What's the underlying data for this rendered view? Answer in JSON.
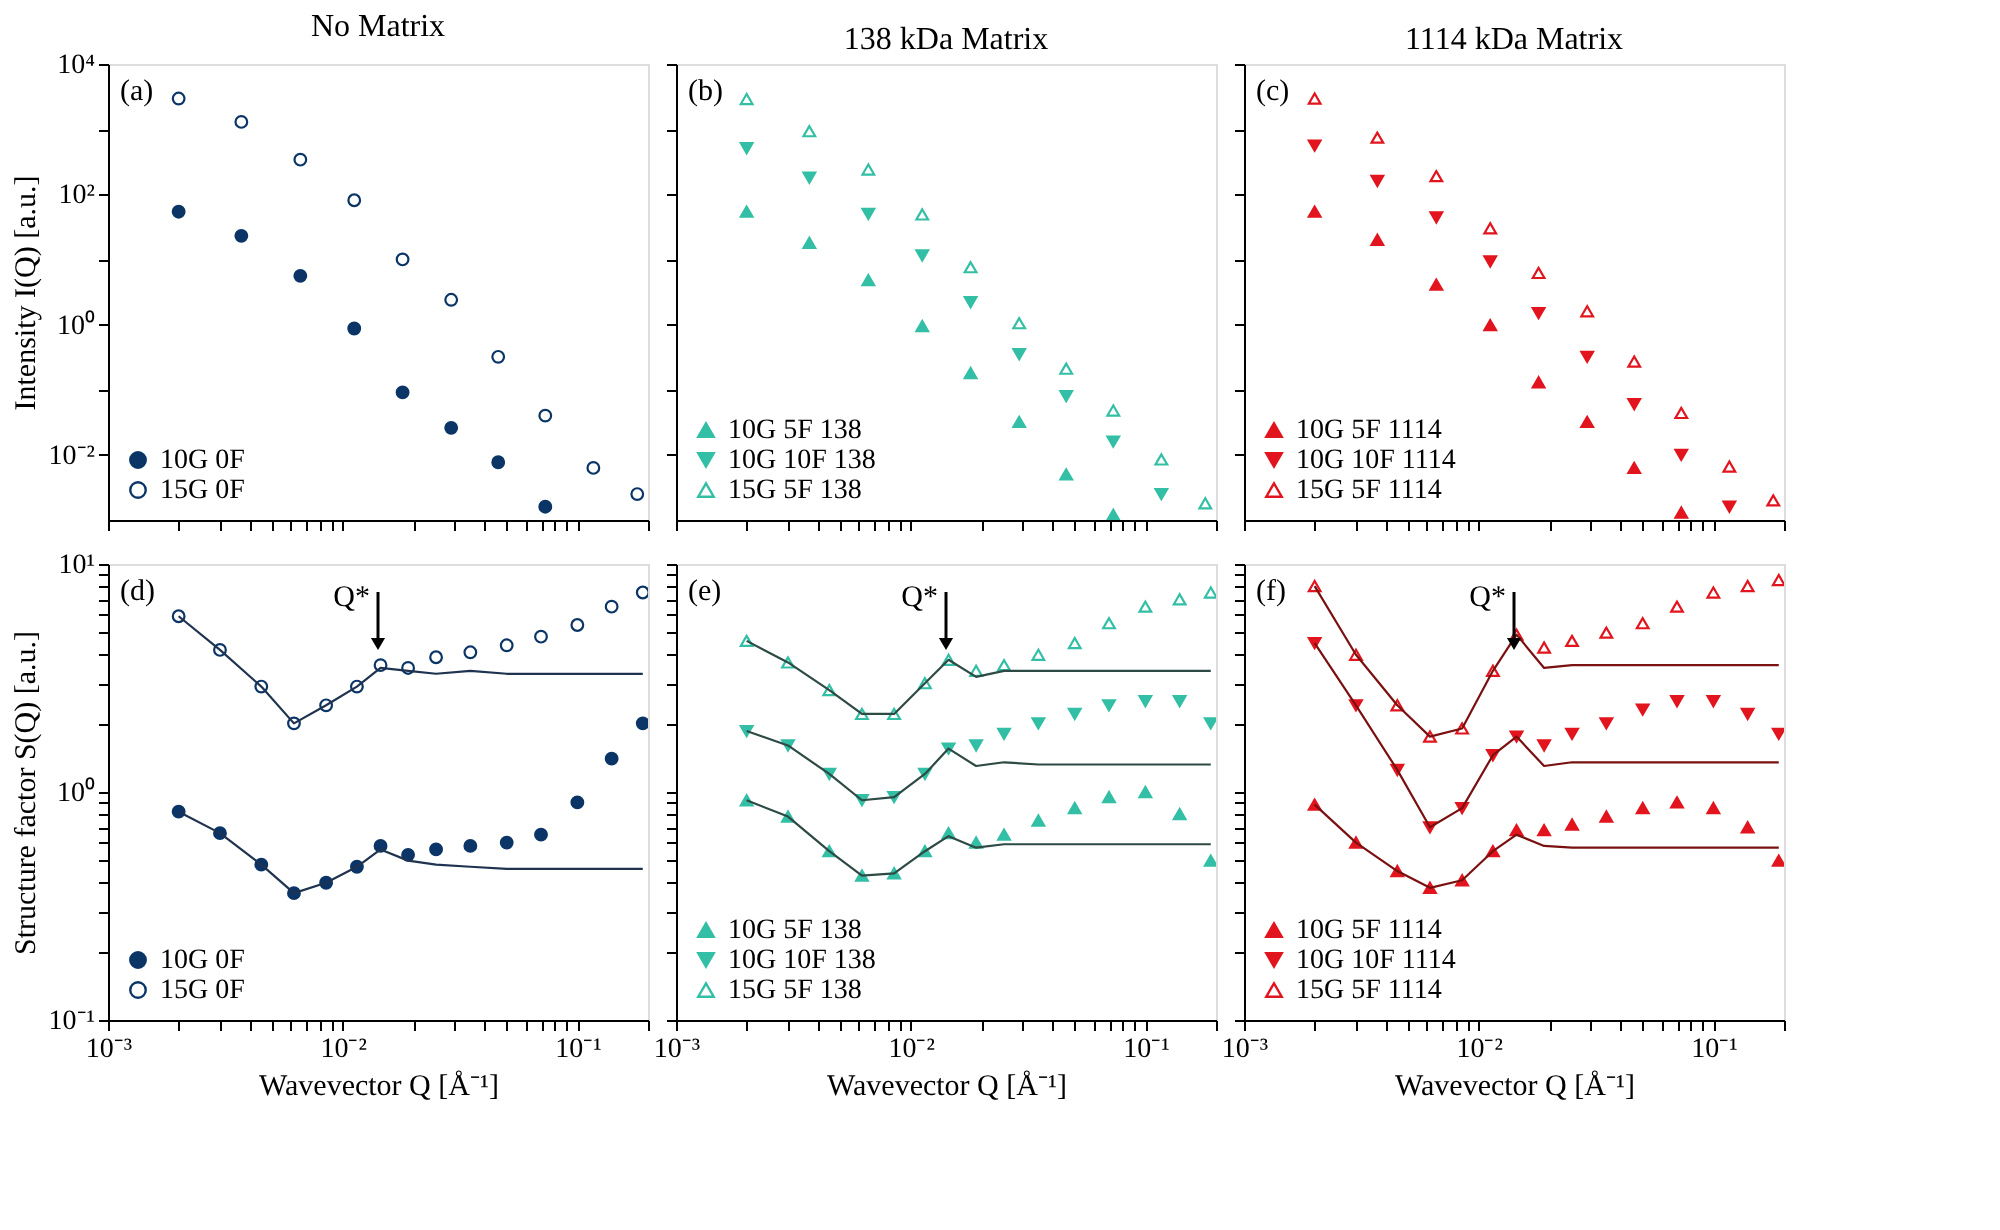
{
  "chart_data": [
    {
      "type": "scatter",
      "title": "No Matrix",
      "ylabel": "Intensity I(Q) [a.u.]",
      "log": "xy",
      "legend": "bottom left",
      "tick_labels": "y",
      "annotations": [
        "(a)"
      ],
      "x": [
        0.002,
        0.0037,
        0.0066,
        0.0112,
        0.018,
        0.029,
        0.046,
        0.073,
        0.117,
        0.18
      ],
      "xlim": [
        0.001,
        0.2
      ],
      "ylim": [
        0.001,
        10000
      ],
      "xticks": [
        {
          "value": 0.001,
          "label": null
        },
        {
          "value": 0.002,
          "label": null
        },
        {
          "value": 0.003,
          "label": null
        },
        {
          "value": 0.004,
          "label": null
        },
        {
          "value": 0.005,
          "label": null
        },
        {
          "value": 0.006,
          "label": null
        },
        {
          "value": 0.007,
          "label": null
        },
        {
          "value": 0.008,
          "label": null
        },
        {
          "value": 0.009,
          "label": null
        },
        {
          "value": 0.01,
          "label": null
        },
        {
          "value": 0.02,
          "label": null
        },
        {
          "value": 0.03,
          "label": null
        },
        {
          "value": 0.04,
          "label": null
        },
        {
          "value": 0.05,
          "label": null
        },
        {
          "value": 0.06,
          "label": null
        },
        {
          "value": 0.07,
          "label": null
        },
        {
          "value": 0.08,
          "label": null
        },
        {
          "value": 0.09,
          "label": null
        },
        {
          "value": 0.1,
          "label": null
        },
        {
          "value": 0.2,
          "label": null
        }
      ],
      "yticks": [
        {
          "value": 10000,
          "label": "10⁴"
        },
        {
          "value": 1000,
          "label": null
        },
        {
          "value": 100,
          "label": "10²"
        },
        {
          "value": 10,
          "label": null
        },
        {
          "value": 1,
          "label": "10⁰"
        },
        {
          "value": 0.1,
          "label": null
        },
        {
          "value": 0.01,
          "label": "10⁻²"
        }
      ],
      "series": [
        {
          "name": "10G 0F",
          "color": "#0b3566",
          "marker": "circle",
          "values": [
            54,
            23,
            5.6,
            0.87,
            0.091,
            0.026,
            0.0077,
            0.0016,
            null,
            null
          ]
        },
        {
          "name": "15G 0F",
          "color": "#0b3566",
          "marker": "circle-open",
          "values": [
            2950,
            1290,
            340,
            81,
            10,
            2.4,
            0.32,
            0.04,
            0.0063,
            0.0025
          ]
        }
      ]
    },
    {
      "type": "scatter",
      "title": "138 kDa Matrix",
      "log": "xy",
      "legend": "bottom left",
      "tick_labels": false,
      "annotations": [
        "(b)"
      ],
      "x": [
        0.002,
        0.0037,
        0.0066,
        0.0112,
        0.018,
        0.029,
        0.046,
        0.073,
        0.117,
        0.18
      ],
      "xlim": [
        0.001,
        0.2
      ],
      "ylim": [
        0.001,
        10000
      ],
      "xticks": [
        {
          "value": 0.001,
          "label": null
        },
        {
          "value": 0.002,
          "label": null
        },
        {
          "value": 0.003,
          "label": null
        },
        {
          "value": 0.004,
          "label": null
        },
        {
          "value": 0.005,
          "label": null
        },
        {
          "value": 0.006,
          "label": null
        },
        {
          "value": 0.007,
          "label": null
        },
        {
          "value": 0.008,
          "label": null
        },
        {
          "value": 0.009,
          "label": null
        },
        {
          "value": 0.01,
          "label": null
        },
        {
          "value": 0.02,
          "label": null
        },
        {
          "value": 0.03,
          "label": null
        },
        {
          "value": 0.04,
          "label": null
        },
        {
          "value": 0.05,
          "label": null
        },
        {
          "value": 0.06,
          "label": null
        },
        {
          "value": 0.07,
          "label": null
        },
        {
          "value": 0.08,
          "label": null
        },
        {
          "value": 0.09,
          "label": null
        },
        {
          "value": 0.1,
          "label": null
        },
        {
          "value": 0.2,
          "label": null
        }
      ],
      "yticks": [
        {
          "value": 10000,
          "label": null
        },
        {
          "value": 1000,
          "label": null
        },
        {
          "value": 100,
          "label": null
        },
        {
          "value": 10,
          "label": null
        },
        {
          "value": 1,
          "label": null
        },
        {
          "value": 0.1,
          "label": null
        },
        {
          "value": 0.01,
          "label": null
        }
      ],
      "series": [
        {
          "name": "10G 5F 138",
          "color": "#33bfa5",
          "marker": "triangle",
          "values": [
            54,
            18,
            4.8,
            0.95,
            0.18,
            0.032,
            0.005,
            0.0012,
            null,
            null
          ]
        },
        {
          "name": "10G 10F 138",
          "color": "#33bfa5",
          "marker": "triangle-down",
          "values": [
            510,
            180,
            50,
            11.5,
            2.2,
            0.35,
            0.08,
            0.016,
            0.0025,
            null
          ]
        },
        {
          "name": "15G 5F 138",
          "color": "#33bfa5",
          "marker": "triangle-open",
          "values": [
            2900,
            930,
            240,
            49,
            7.6,
            1.05,
            0.21,
            0.048,
            0.0085,
            0.0018
          ]
        }
      ]
    },
    {
      "type": "scatter",
      "title": "1114 kDa Matrix",
      "log": "xy",
      "legend": "bottom left",
      "tick_labels": false,
      "annotations": [
        "(c)"
      ],
      "x": [
        0.002,
        0.0037,
        0.0066,
        0.0112,
        0.018,
        0.029,
        0.046,
        0.073,
        0.117,
        0.18
      ],
      "xlim": [
        0.001,
        0.2
      ],
      "ylim": [
        0.001,
        10000
      ],
      "xticks": [
        {
          "value": 0.001,
          "label": null
        },
        {
          "value": 0.002,
          "label": null
        },
        {
          "value": 0.003,
          "label": null
        },
        {
          "value": 0.004,
          "label": null
        },
        {
          "value": 0.005,
          "label": null
        },
        {
          "value": 0.006,
          "label": null
        },
        {
          "value": 0.007,
          "label": null
        },
        {
          "value": 0.008,
          "label": null
        },
        {
          "value": 0.009,
          "label": null
        },
        {
          "value": 0.01,
          "label": null
        },
        {
          "value": 0.02,
          "label": null
        },
        {
          "value": 0.03,
          "label": null
        },
        {
          "value": 0.04,
          "label": null
        },
        {
          "value": 0.05,
          "label": null
        },
        {
          "value": 0.06,
          "label": null
        },
        {
          "value": 0.07,
          "label": null
        },
        {
          "value": 0.08,
          "label": null
        },
        {
          "value": 0.09,
          "label": null
        },
        {
          "value": 0.1,
          "label": null
        },
        {
          "value": 0.2,
          "label": null
        }
      ],
      "yticks": [
        {
          "value": 10000,
          "label": null
        },
        {
          "value": 1000,
          "label": null
        },
        {
          "value": 100,
          "label": null
        },
        {
          "value": 10,
          "label": null
        },
        {
          "value": 1,
          "label": null
        },
        {
          "value": 0.1,
          "label": null
        },
        {
          "value": 0.01,
          "label": null
        }
      ],
      "series": [
        {
          "name": "10G 5F 1114",
          "color": "#e2141e",
          "marker": "triangle",
          "values": [
            54,
            20,
            4.1,
            0.98,
            0.13,
            0.032,
            0.0063,
            0.0013,
            null,
            null
          ]
        },
        {
          "name": "10G 10F 1114",
          "color": "#e2141e",
          "marker": "triangle-down",
          "values": [
            560,
            160,
            44,
            9.3,
            1.5,
            0.32,
            0.06,
            0.01,
            0.0016,
            null
          ]
        },
        {
          "name": "15G 5F 1114",
          "color": "#e2141e",
          "marker": "triangle-open",
          "values": [
            2950,
            740,
            190,
            30,
            6.2,
            1.6,
            0.27,
            0.044,
            0.0066,
            0.002
          ]
        }
      ]
    },
    {
      "type": "scatter",
      "xlabel": "Wavevector Q [Å⁻¹]",
      "ylabel": "Structure factor S(Q) [a.u.]",
      "log": "xy",
      "legend": "bottom left",
      "annotations": [
        "(d)",
        "Q*"
      ],
      "x": [
        0.002,
        0.003,
        0.0045,
        0.0062,
        0.0085,
        0.0115,
        0.0145,
        0.019,
        0.025,
        0.035,
        0.05,
        0.07,
        0.1,
        0.14,
        0.19
      ],
      "xlim": [
        0.001,
        0.2
      ],
      "ylim": [
        0.1,
        10
      ],
      "xticks": [
        {
          "value": 0.001,
          "label": "10⁻³"
        },
        {
          "value": 0.002,
          "label": null
        },
        {
          "value": 0.003,
          "label": null
        },
        {
          "value": 0.004,
          "label": null
        },
        {
          "value": 0.005,
          "label": null
        },
        {
          "value": 0.006,
          "label": null
        },
        {
          "value": 0.007,
          "label": null
        },
        {
          "value": 0.008,
          "label": null
        },
        {
          "value": 0.009,
          "label": null
        },
        {
          "value": 0.01,
          "label": "10⁻²"
        },
        {
          "value": 0.02,
          "label": null
        },
        {
          "value": 0.03,
          "label": null
        },
        {
          "value": 0.04,
          "label": null
        },
        {
          "value": 0.05,
          "label": null
        },
        {
          "value": 0.06,
          "label": null
        },
        {
          "value": 0.07,
          "label": null
        },
        {
          "value": 0.08,
          "label": null
        },
        {
          "value": 0.09,
          "label": null
        },
        {
          "value": 0.1,
          "label": "10⁻¹"
        },
        {
          "value": 0.2,
          "label": null
        }
      ],
      "yticks": [
        {
          "value": 0.1,
          "label": "10⁻¹"
        },
        {
          "value": 0.2,
          "label": null
        },
        {
          "value": 0.3,
          "label": null
        },
        {
          "value": 0.4,
          "label": null
        },
        {
          "value": 0.5,
          "label": null
        },
        {
          "value": 0.6,
          "label": null
        },
        {
          "value": 0.7,
          "label": null
        },
        {
          "value": 0.8,
          "label": null
        },
        {
          "value": 0.9,
          "label": null
        },
        {
          "value": 1,
          "label": "10⁰"
        },
        {
          "value": 2,
          "label": null
        },
        {
          "value": 3,
          "label": null
        },
        {
          "value": 4,
          "label": null
        },
        {
          "value": 5,
          "label": null
        },
        {
          "value": 6,
          "label": null
        },
        {
          "value": 7,
          "label": null
        },
        {
          "value": 8,
          "label": null
        },
        {
          "value": 9,
          "label": null
        },
        {
          "value": 10,
          "label": "10¹"
        }
      ],
      "series": [
        {
          "name": "10G 0F",
          "color": "#0b3566",
          "marker": "circle",
          "values": [
            0.82,
            0.66,
            0.48,
            0.36,
            0.4,
            0.47,
            0.58,
            0.53,
            0.56,
            0.58,
            0.6,
            0.65,
            0.9,
            1.4,
            2.0
          ]
        },
        {
          "name": "15G 0F",
          "color": "#0b3566",
          "marker": "circle-open",
          "values": [
            5.9,
            4.2,
            2.9,
            2.0,
            2.4,
            2.9,
            3.6,
            3.5,
            3.9,
            4.1,
            4.4,
            4.8,
            5.4,
            6.5,
            7.5
          ]
        },
        {
          "type": "line",
          "color": "#1f3350",
          "values": [
            0.82,
            0.66,
            0.48,
            0.36,
            0.4,
            0.47,
            0.56,
            0.5,
            0.48,
            0.47,
            0.46,
            0.46,
            0.46,
            0.46,
            0.46
          ]
        },
        {
          "type": "line",
          "color": "#1f3350",
          "values": [
            5.9,
            4.2,
            2.9,
            2.0,
            2.4,
            2.9,
            3.5,
            3.4,
            3.3,
            3.4,
            3.3,
            3.3,
            3.3,
            3.3,
            3.3
          ]
        }
      ]
    },
    {
      "type": "scatter",
      "xlabel": "Wavevector Q [Å⁻¹]",
      "log": "xy",
      "legend": "bottom left",
      "tick_labels": "x",
      "annotations": [
        "(e)",
        "Q*"
      ],
      "x": [
        0.002,
        0.003,
        0.0045,
        0.0062,
        0.0085,
        0.0115,
        0.0145,
        0.019,
        0.025,
        0.035,
        0.05,
        0.07,
        0.1,
        0.14,
        0.19
      ],
      "xlim": [
        0.001,
        0.2
      ],
      "ylim": [
        0.1,
        10
      ],
      "xticks": [
        {
          "value": 0.001,
          "label": "10⁻³"
        },
        {
          "value": 0.002,
          "label": null
        },
        {
          "value": 0.003,
          "label": null
        },
        {
          "value": 0.004,
          "label": null
        },
        {
          "value": 0.005,
          "label": null
        },
        {
          "value": 0.006,
          "label": null
        },
        {
          "value": 0.007,
          "label": null
        },
        {
          "value": 0.008,
          "label": null
        },
        {
          "value": 0.009,
          "label": null
        },
        {
          "value": 0.01,
          "label": "10⁻²"
        },
        {
          "value": 0.02,
          "label": null
        },
        {
          "value": 0.03,
          "label": null
        },
        {
          "value": 0.04,
          "label": null
        },
        {
          "value": 0.05,
          "label": null
        },
        {
          "value": 0.06,
          "label": null
        },
        {
          "value": 0.07,
          "label": null
        },
        {
          "value": 0.08,
          "label": null
        },
        {
          "value": 0.09,
          "label": null
        },
        {
          "value": 0.1,
          "label": "10⁻¹"
        },
        {
          "value": 0.2,
          "label": null
        }
      ],
      "yticks": [
        {
          "value": 0.1,
          "label": null
        },
        {
          "value": 0.2,
          "label": null
        },
        {
          "value": 0.3,
          "label": null
        },
        {
          "value": 0.4,
          "label": null
        },
        {
          "value": 0.5,
          "label": null
        },
        {
          "value": 0.6,
          "label": null
        },
        {
          "value": 0.7,
          "label": null
        },
        {
          "value": 0.8,
          "label": null
        },
        {
          "value": 0.9,
          "label": null
        },
        {
          "value": 1,
          "label": null
        },
        {
          "value": 2,
          "label": null
        },
        {
          "value": 3,
          "label": null
        },
        {
          "value": 4,
          "label": null
        },
        {
          "value": 5,
          "label": null
        },
        {
          "value": 6,
          "label": null
        },
        {
          "value": 7,
          "label": null
        },
        {
          "value": 8,
          "label": null
        },
        {
          "value": 9,
          "label": null
        },
        {
          "value": 10,
          "label": null
        }
      ],
      "series": [
        {
          "name": "10G 5F 138",
          "color": "#33bfa5",
          "marker": "triangle",
          "values": [
            0.92,
            0.78,
            0.55,
            0.43,
            0.44,
            0.55,
            0.66,
            0.6,
            0.65,
            0.75,
            0.85,
            0.95,
            1.0,
            0.8,
            0.5
          ]
        },
        {
          "name": "10G 10F 138",
          "color": "#33bfa5",
          "marker": "triangle-down",
          "values": [
            1.85,
            1.6,
            1.2,
            0.92,
            0.95,
            1.2,
            1.55,
            1.6,
            1.8,
            2.0,
            2.2,
            2.4,
            2.5,
            2.5,
            2.0
          ]
        },
        {
          "name": "15G 5F 138",
          "color": "#33bfa5",
          "marker": "triangle-open",
          "values": [
            4.6,
            3.7,
            2.8,
            2.2,
            2.2,
            3.0,
            3.8,
            3.4,
            3.6,
            4.0,
            4.5,
            5.5,
            6.5,
            7.0,
            7.5
          ]
        },
        {
          "type": "line",
          "color": "#2d4a44",
          "values": [
            0.92,
            0.78,
            0.55,
            0.43,
            0.44,
            0.55,
            0.64,
            0.57,
            0.59,
            0.59,
            0.59,
            0.59,
            0.59,
            0.59,
            0.59
          ]
        },
        {
          "type": "line",
          "color": "#2d4a44",
          "values": [
            1.85,
            1.6,
            1.2,
            0.92,
            0.95,
            1.2,
            1.55,
            1.3,
            1.35,
            1.32,
            1.32,
            1.32,
            1.32,
            1.32,
            1.32
          ]
        },
        {
          "type": "line",
          "color": "#2d4a44",
          "values": [
            4.6,
            3.7,
            2.8,
            2.2,
            2.2,
            3.0,
            3.8,
            3.2,
            3.4,
            3.4,
            3.4,
            3.4,
            3.4,
            3.4,
            3.4
          ]
        }
      ]
    },
    {
      "type": "scatter",
      "xlabel": "Wavevector Q [Å⁻¹]",
      "log": "xy",
      "legend": "bottom left",
      "tick_labels": "x",
      "annotations": [
        "(f)",
        "Q*"
      ],
      "x": [
        0.002,
        0.003,
        0.0045,
        0.0062,
        0.0085,
        0.0115,
        0.0145,
        0.019,
        0.025,
        0.035,
        0.05,
        0.07,
        0.1,
        0.14,
        0.19
      ],
      "xlim": [
        0.001,
        0.2
      ],
      "ylim": [
        0.1,
        10
      ],
      "xticks": [
        {
          "value": 0.001,
          "label": "10⁻³"
        },
        {
          "value": 0.002,
          "label": null
        },
        {
          "value": 0.003,
          "label": null
        },
        {
          "value": 0.004,
          "label": null
        },
        {
          "value": 0.005,
          "label": null
        },
        {
          "value": 0.006,
          "label": null
        },
        {
          "value": 0.007,
          "label": null
        },
        {
          "value": 0.008,
          "label": null
        },
        {
          "value": 0.009,
          "label": null
        },
        {
          "value": 0.01,
          "label": "10⁻²"
        },
        {
          "value": 0.02,
          "label": null
        },
        {
          "value": 0.03,
          "label": null
        },
        {
          "value": 0.04,
          "label": null
        },
        {
          "value": 0.05,
          "label": null
        },
        {
          "value": 0.06,
          "label": null
        },
        {
          "value": 0.07,
          "label": null
        },
        {
          "value": 0.08,
          "label": null
        },
        {
          "value": 0.09,
          "label": null
        },
        {
          "value": 0.1,
          "label": "10⁻¹"
        },
        {
          "value": 0.2,
          "label": null
        }
      ],
      "yticks": [
        {
          "value": 0.1,
          "label": null
        },
        {
          "value": 0.2,
          "label": null
        },
        {
          "value": 0.3,
          "label": null
        },
        {
          "value": 0.4,
          "label": null
        },
        {
          "value": 0.5,
          "label": null
        },
        {
          "value": 0.6,
          "label": null
        },
        {
          "value": 0.7,
          "label": null
        },
        {
          "value": 0.8,
          "label": null
        },
        {
          "value": 0.9,
          "label": null
        },
        {
          "value": 1,
          "label": null
        },
        {
          "value": 2,
          "label": null
        },
        {
          "value": 3,
          "label": null
        },
        {
          "value": 4,
          "label": null
        },
        {
          "value": 5,
          "label": null
        },
        {
          "value": 6,
          "label": null
        },
        {
          "value": 7,
          "label": null
        },
        {
          "value": 8,
          "label": null
        },
        {
          "value": 9,
          "label": null
        },
        {
          "value": 10,
          "label": null
        }
      ],
      "series": [
        {
          "name": "10G 5F 1114",
          "color": "#e2141e",
          "marker": "triangle",
          "values": [
            0.88,
            0.6,
            0.45,
            0.38,
            0.41,
            0.55,
            0.68,
            0.68,
            0.72,
            0.78,
            0.85,
            0.9,
            0.85,
            0.7,
            0.5
          ]
        },
        {
          "name": "10G 10F 1114",
          "color": "#e2141e",
          "marker": "triangle-down",
          "values": [
            4.5,
            2.4,
            1.25,
            0.7,
            0.85,
            1.45,
            1.75,
            1.6,
            1.8,
            2.0,
            2.3,
            2.5,
            2.5,
            2.2,
            1.8
          ]
        },
        {
          "name": "15G 5F 1114",
          "color": "#e2141e",
          "marker": "triangle-open",
          "values": [
            8.0,
            4.0,
            2.4,
            1.75,
            1.9,
            3.4,
            4.9,
            4.3,
            4.6,
            5.0,
            5.5,
            6.5,
            7.5,
            8.0,
            8.5
          ]
        },
        {
          "type": "line",
          "color": "#7a1010",
          "values": [
            0.88,
            0.6,
            0.45,
            0.38,
            0.41,
            0.55,
            0.65,
            0.58,
            0.57,
            0.57,
            0.57,
            0.57,
            0.57,
            0.57,
            0.57
          ]
        },
        {
          "type": "line",
          "color": "#7a1010",
          "values": [
            4.5,
            2.4,
            1.25,
            0.7,
            0.85,
            1.45,
            1.75,
            1.3,
            1.35,
            1.35,
            1.35,
            1.35,
            1.35,
            1.35,
            1.35
          ]
        },
        {
          "type": "line",
          "color": "#7a1010",
          "values": [
            8.0,
            4.0,
            2.4,
            1.75,
            1.9,
            3.4,
            4.9,
            3.5,
            3.6,
            3.6,
            3.6,
            3.6,
            3.6,
            3.6,
            3.6
          ]
        }
      ]
    }
  ]
}
